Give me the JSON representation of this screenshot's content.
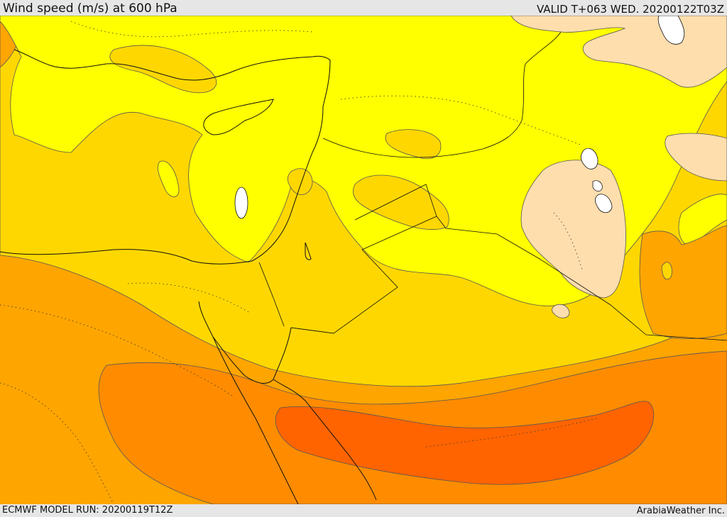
{
  "header": {
    "title": "Wind speed (m/s) at 600 hPa",
    "valid": "VALID T+063 WED. 20200122T03Z"
  },
  "footer": {
    "model_run": "ECMWF MODEL RUN: 20200119T12Z",
    "credit": "ArabiaWeather Inc."
  },
  "colors": {
    "speed_lowest": "#ffdead",
    "speed_low": "#ffff00",
    "speed_mid": "#ffd700",
    "speed_high": "#ffa500",
    "speed_higher": "#ff8c00",
    "speed_highest": "#ff6400",
    "water_hole": "#ffffff",
    "coastline": "#111111",
    "contour": "#555555"
  }
}
